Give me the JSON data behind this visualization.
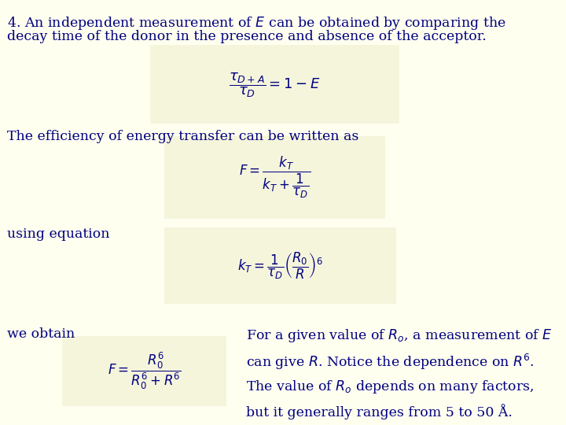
{
  "background_color": "#FFFFF0",
  "box_color": "#F5F5DC",
  "text_color": "#000080",
  "fig_width": 7.2,
  "fig_height": 5.4,
  "dpi": 100,
  "title_line1": "4. An independent measurement of $E$ can be obtained by comparing the",
  "title_line2": "decay time of the donor in the presence and absence of the acceptor.",
  "text2": "The efficiency of energy transfer can be written as",
  "text3": "using equation",
  "text4": "we obtain",
  "text5_line1": "For a given value of $R_o$, a measurement of $E$",
  "text5_line2": "can give $R$. Notice the dependence on $R^6$.",
  "text5_line3": "The value of $R_o$ depends on many factors,",
  "text5_line4": "but it generally ranges from 5 to 50 Å.",
  "font_size_title": 12.5,
  "font_size_body": 12.5,
  "font_size_eq1": 13,
  "font_size_eq2": 12,
  "font_size_eq3": 12,
  "font_size_eq4": 12
}
